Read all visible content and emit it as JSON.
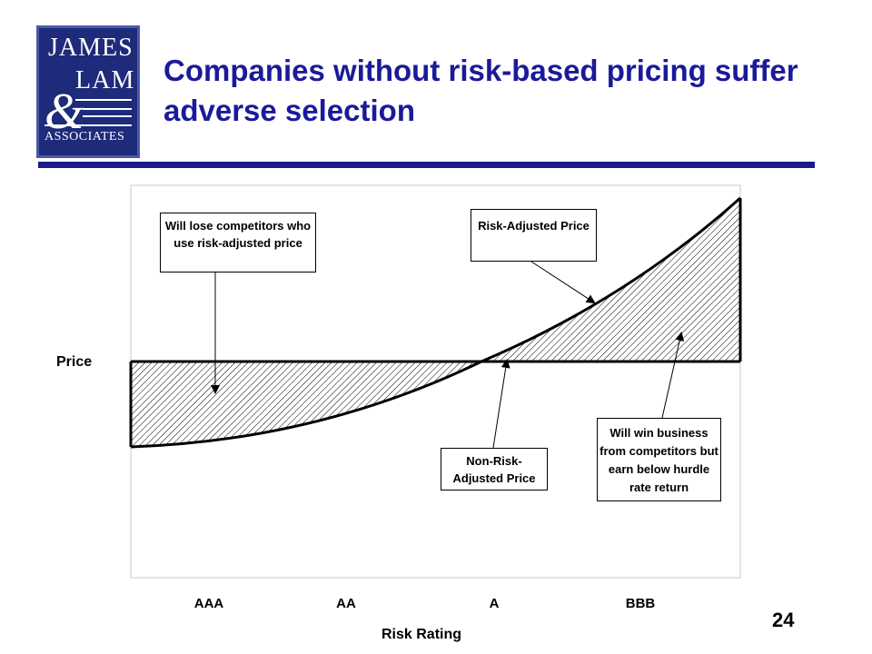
{
  "logo": {
    "line1": "JAMES",
    "line2": "LAM",
    "ampersand": "&",
    "line3": "ASSOCIATES",
    "bg_color": "#1e2a7a"
  },
  "slide": {
    "title": "Companies without risk-based pricing suffer adverse selection",
    "page_number": "24",
    "title_color": "#1a1a9a"
  },
  "diagram": {
    "y_axis_label": "Price",
    "x_axis_label": "Risk Rating",
    "x_ticks": [
      "AAA",
      "AA",
      "A",
      "BBB"
    ],
    "callouts": {
      "lose": "Will lose competitors who use risk-adjusted price",
      "risk_adjusted": "Risk-Adjusted Price",
      "non_risk": "Non-Risk- Adjusted Price",
      "win": "Will win business from competitors but earn below hurdle rate return"
    }
  }
}
